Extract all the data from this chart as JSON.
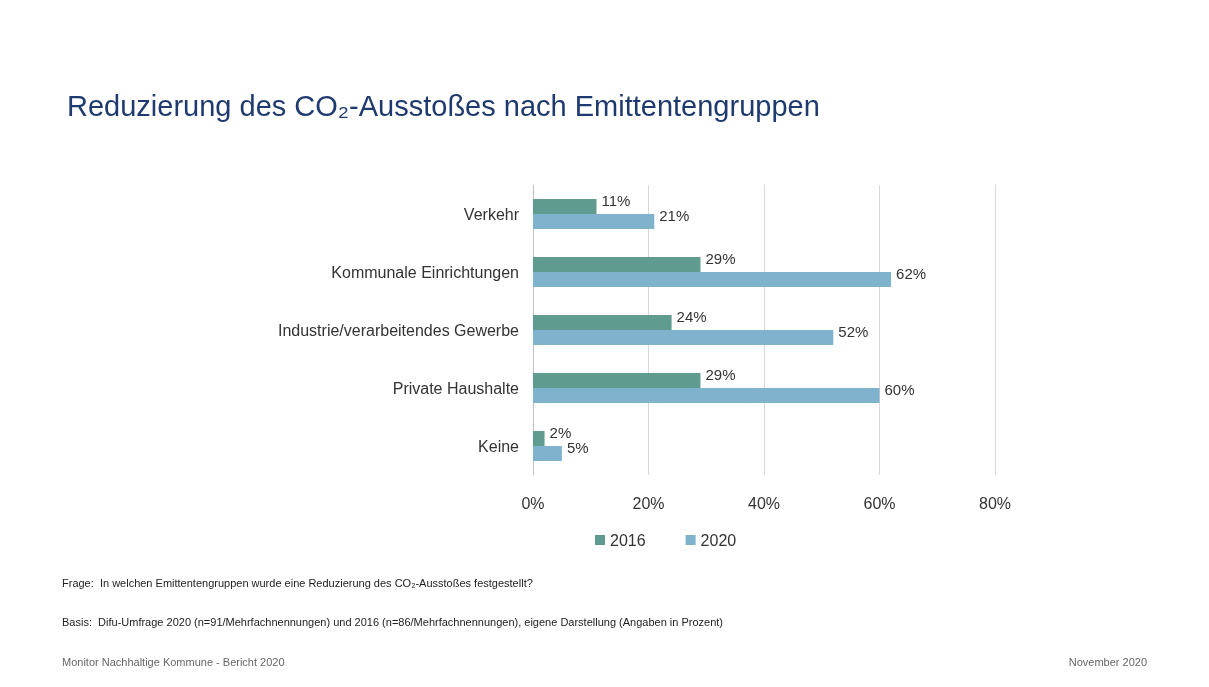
{
  "chart_data": {
    "type": "bar",
    "orientation": "horizontal",
    "title": "Reduzierung des CO₂-Ausstoßes nach Emittentengruppen",
    "categories": [
      "Verkehr",
      "Kommunale Einrichtungen",
      "Industrie/verarbeitendes Gewerbe",
      "Private Haushalte",
      "Keine"
    ],
    "series": [
      {
        "name": "2016",
        "color": "#5f9c8f",
        "values": [
          11,
          29,
          24,
          29,
          2
        ],
        "value_labels": [
          "11%",
          "29%",
          "24%",
          "29%",
          "2%"
        ]
      },
      {
        "name": "2020",
        "color": "#7fb2cc",
        "values": [
          21,
          62,
          52,
          60,
          5
        ],
        "value_labels": [
          "21%",
          "62%",
          "52%",
          "60%",
          "5%"
        ]
      }
    ],
    "xlim": [
      0,
      80
    ],
    "xticks": [
      {
        "value": 0,
        "label": "0%"
      },
      {
        "value": 20,
        "label": "20%"
      },
      {
        "value": 40,
        "label": "40%"
      },
      {
        "value": 60,
        "label": "60%"
      },
      {
        "value": 80,
        "label": "80%"
      }
    ],
    "grid": "x",
    "legend": "bottom",
    "annotations": [
      "Frage:  In welchen Emittentengruppen wurde eine Reduzierung des CO₂-Ausstoßes festgestellt?",
      "Basis:  Difu-Umfrage 2020 (n=91/Mehrfachnennungen) und 2016 (n=86/Mehrfachnennungen), eigene Darstellung (Angaben in Prozent)",
      "Monitor Nachhaltige Kommune - Bericht 2020",
      "November 2020"
    ]
  }
}
